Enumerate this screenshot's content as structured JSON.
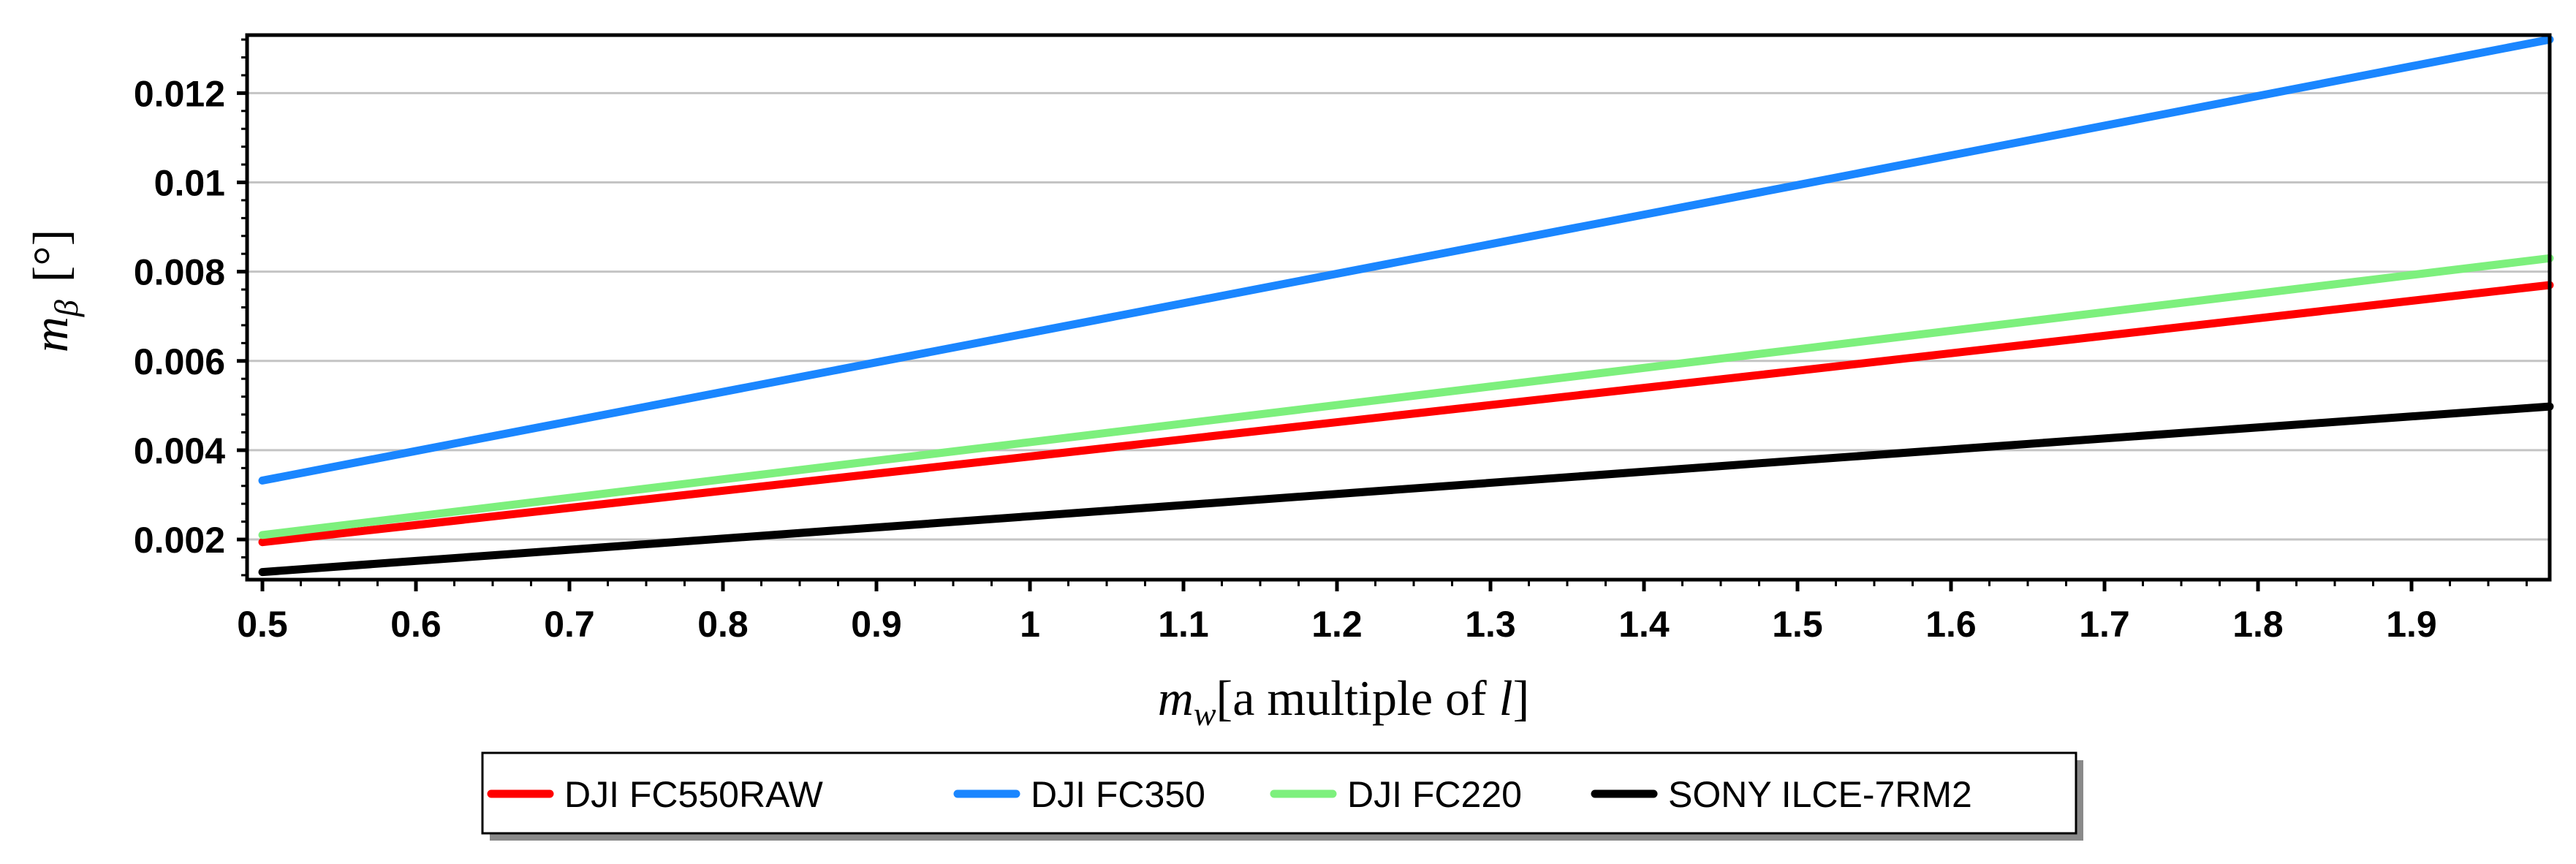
{
  "chart_data": {
    "type": "line",
    "xlabel": {
      "main": "m",
      "sub": "w",
      "rest": "[a multiple of ",
      "var": "l",
      "close": "]"
    },
    "ylabel": {
      "main": "m",
      "sub": "β",
      "unit": "[°]"
    },
    "xlim": [
      0.49,
      1.99
    ],
    "ylim": [
      0.0011,
      0.0133
    ],
    "x_ticks": [
      {
        "value": 0.5,
        "label": "0.5"
      },
      {
        "value": 0.6,
        "label": "0.6"
      },
      {
        "value": 0.7,
        "label": "0.7"
      },
      {
        "value": 0.8,
        "label": "0.8"
      },
      {
        "value": 0.9,
        "label": "0.9"
      },
      {
        "value": 1.0,
        "label": "1"
      },
      {
        "value": 1.1,
        "label": "1.1"
      },
      {
        "value": 1.2,
        "label": "1.2"
      },
      {
        "value": 1.3,
        "label": "1.3"
      },
      {
        "value": 1.4,
        "label": "1.4"
      },
      {
        "value": 1.5,
        "label": "1.5"
      },
      {
        "value": 1.6,
        "label": "1.6"
      },
      {
        "value": 1.7,
        "label": "1.7"
      },
      {
        "value": 1.8,
        "label": "1.8"
      },
      {
        "value": 1.9,
        "label": "1.9"
      }
    ],
    "y_ticks": [
      {
        "value": 0.002,
        "label": "0.002"
      },
      {
        "value": 0.004,
        "label": "0.004"
      },
      {
        "value": 0.006,
        "label": "0.006"
      },
      {
        "value": 0.008,
        "label": "0.008"
      },
      {
        "value": 0.01,
        "label": "0.01"
      },
      {
        "value": 0.012,
        "label": "0.012"
      }
    ],
    "grid": true,
    "legend_position": "bottom-center",
    "series": [
      {
        "name": "DJI FC550RAW",
        "color": "#ff0000",
        "x": [
          0.5,
          1.0,
          1.5,
          1.99
        ],
        "y": [
          0.00194,
          0.00386,
          0.00578,
          0.0077
        ]
      },
      {
        "name": "DJI FC350",
        "color": "#1a86ff",
        "x": [
          0.5,
          1.0,
          1.5,
          1.99
        ],
        "y": [
          0.00332,
          0.00663,
          0.00994,
          0.0132
        ]
      },
      {
        "name": "DJI FC220",
        "color": "#7df07d",
        "x": [
          0.5,
          1.0,
          1.5,
          1.99
        ],
        "y": [
          0.0021,
          0.00418,
          0.00626,
          0.0083
        ]
      },
      {
        "name": "SONY ILCE-7RM2",
        "color": "#000000",
        "x": [
          0.5,
          1.0,
          1.5,
          1.99
        ],
        "y": [
          0.00127,
          0.00252,
          0.00377,
          0.00498
        ]
      }
    ]
  }
}
